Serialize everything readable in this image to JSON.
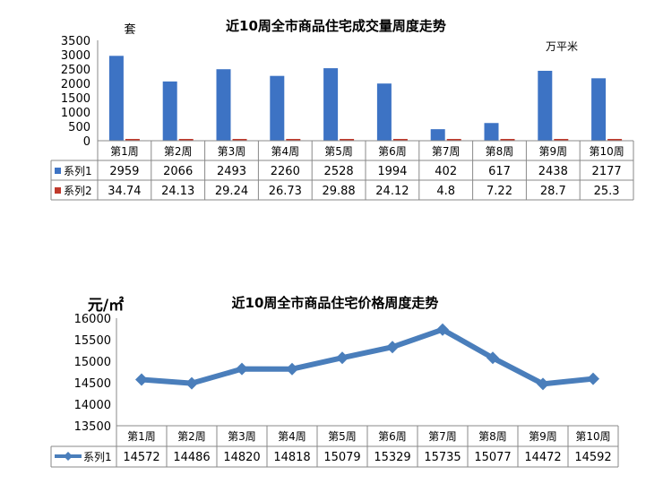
{
  "chart_data": [
    {
      "type": "bar",
      "title": "近10周全市商品住宅成交量周度走势",
      "left_unit": "套",
      "right_unit": "万平米",
      "categories": [
        "第1周",
        "第2周",
        "第3周",
        "第4周",
        "第5周",
        "第6周",
        "第7周",
        "第8周",
        "第9周",
        "第10周"
      ],
      "ylim": [
        0,
        3500
      ],
      "yticks": [
        0,
        500,
        1000,
        1500,
        2000,
        2500,
        3000,
        3500
      ],
      "grid": false,
      "legend": "table",
      "series": [
        {
          "name": "系列1",
          "color": "#3D73C4",
          "values": [
            2959,
            2066,
            2493,
            2260,
            2528,
            1994,
            402,
            617,
            2438,
            2177
          ]
        },
        {
          "name": "系列2",
          "color": "#C0392B",
          "values": [
            34.74,
            24.13,
            29.24,
            26.73,
            29.88,
            24.12,
            4.8,
            7.22,
            28.7,
            25.3
          ]
        }
      ]
    },
    {
      "type": "line",
      "title": "近10周全市商品住宅价格周度走势",
      "left_unit": "元/㎡",
      "categories": [
        "第1周",
        "第2周",
        "第3周",
        "第4周",
        "第5周",
        "第6周",
        "第7周",
        "第8周",
        "第9周",
        "第10周"
      ],
      "ylim": [
        13500,
        16000
      ],
      "yticks": [
        13500,
        14000,
        14500,
        15000,
        15500,
        16000
      ],
      "grid": false,
      "legend": "table",
      "series": [
        {
          "name": "系列1",
          "color": "#4A7EBB",
          "values": [
            14572,
            14486,
            14820,
            14818,
            15079,
            15329,
            15735,
            15077,
            14472,
            14592
          ]
        }
      ]
    }
  ]
}
